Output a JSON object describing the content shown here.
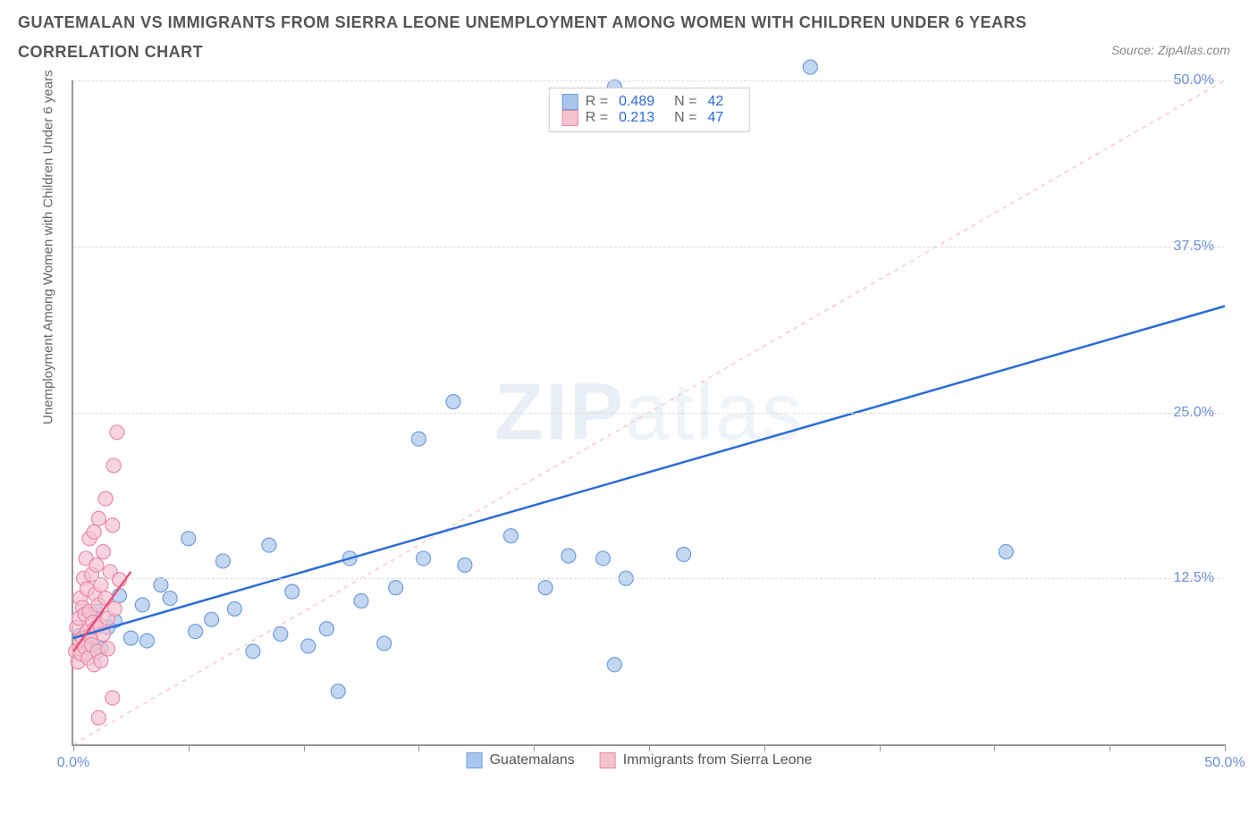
{
  "title_line1": "GUATEMALAN VS IMMIGRANTS FROM SIERRA LEONE UNEMPLOYMENT AMONG WOMEN WITH CHILDREN UNDER 6 YEARS",
  "title_line2": "CORRELATION CHART",
  "source": "Source: ZipAtlas.com",
  "watermark_a": "ZIP",
  "watermark_b": "atlas",
  "ylabel": "Unemployment Among Women with Children Under 6 years",
  "chart": {
    "type": "scatter",
    "xlim": [
      0,
      50
    ],
    "ylim": [
      0,
      50
    ],
    "x_ticks": [
      0,
      5,
      10,
      15,
      20,
      25,
      30,
      35,
      40,
      45,
      50
    ],
    "x_tick_labels": {
      "0": "0.0%",
      "50": "50.0%"
    },
    "y_ticks": [
      12.5,
      25.0,
      37.5,
      50.0
    ],
    "y_tick_labels": [
      "12.5%",
      "25.0%",
      "37.5%",
      "50.0%"
    ],
    "grid_color": "#e5e5e5",
    "axis_color": "#999999",
    "background_color": "#ffffff",
    "tick_label_color": "#6a8fd8",
    "series": [
      {
        "name": "Guatemalans",
        "marker_color": "#a9c6ec",
        "marker_border": "#6f9edb",
        "marker_opacity": 0.7,
        "marker_radius": 8,
        "line_color": "#2b6cd8",
        "line_width": 2.5,
        "line_dash": "none",
        "R": 0.489,
        "N": 42,
        "trend": {
          "x1": 0,
          "y1": 8.0,
          "x2": 50,
          "y2": 33.0
        },
        "diag": {
          "x1": 0,
          "y1": 0,
          "x2": 50,
          "y2": 50,
          "color": "#f7c9d4",
          "dash": "5,5"
        },
        "points": [
          [
            0.3,
            8.2
          ],
          [
            0.6,
            7.5
          ],
          [
            1.0,
            10.0
          ],
          [
            1.2,
            7.2
          ],
          [
            1.8,
            9.3
          ],
          [
            2.0,
            11.2
          ],
          [
            2.5,
            8.0
          ],
          [
            3.0,
            10.5
          ],
          [
            3.2,
            7.8
          ],
          [
            3.8,
            12.0
          ],
          [
            4.2,
            11.0
          ],
          [
            5.0,
            15.5
          ],
          [
            5.3,
            8.5
          ],
          [
            6.0,
            9.4
          ],
          [
            6.5,
            13.8
          ],
          [
            7.0,
            10.2
          ],
          [
            7.8,
            7.0
          ],
          [
            8.5,
            15.0
          ],
          [
            9.0,
            8.3
          ],
          [
            9.5,
            11.5
          ],
          [
            10.2,
            7.4
          ],
          [
            11.0,
            8.7
          ],
          [
            11.5,
            4.0
          ],
          [
            12.0,
            14.0
          ],
          [
            12.5,
            10.8
          ],
          [
            13.5,
            7.6
          ],
          [
            14.0,
            11.8
          ],
          [
            15.0,
            23.0
          ],
          [
            15.2,
            14.0
          ],
          [
            16.5,
            25.8
          ],
          [
            17.0,
            13.5
          ],
          [
            19.0,
            15.7
          ],
          [
            20.5,
            11.8
          ],
          [
            21.5,
            14.2
          ],
          [
            23.0,
            14.0
          ],
          [
            23.5,
            6.0
          ],
          [
            24.0,
            12.5
          ],
          [
            26.5,
            14.3
          ],
          [
            32.0,
            51.0
          ],
          [
            40.5,
            14.5
          ],
          [
            23.5,
            49.5
          ],
          [
            1.5,
            8.8
          ]
        ]
      },
      {
        "name": "Immigrants from Sierra Leone",
        "marker_color": "#f5c2d0",
        "marker_border": "#e88aa8",
        "marker_opacity": 0.7,
        "marker_radius": 8,
        "line_color": "#e8517a",
        "line_width": 2.5,
        "line_dash": "none",
        "R": 0.213,
        "N": 47,
        "trend": {
          "x1": 0,
          "y1": 7.0,
          "x2": 2.5,
          "y2": 13.0
        },
        "points": [
          [
            0.1,
            7.0
          ],
          [
            0.15,
            8.8
          ],
          [
            0.2,
            6.2
          ],
          [
            0.25,
            9.5
          ],
          [
            0.3,
            7.8
          ],
          [
            0.3,
            11.0
          ],
          [
            0.35,
            6.8
          ],
          [
            0.4,
            10.3
          ],
          [
            0.4,
            8.0
          ],
          [
            0.45,
            12.5
          ],
          [
            0.5,
            7.3
          ],
          [
            0.5,
            9.8
          ],
          [
            0.55,
            14.0
          ],
          [
            0.6,
            8.5
          ],
          [
            0.6,
            11.7
          ],
          [
            0.65,
            6.5
          ],
          [
            0.7,
            10.0
          ],
          [
            0.7,
            15.5
          ],
          [
            0.75,
            8.2
          ],
          [
            0.8,
            12.8
          ],
          [
            0.8,
            7.5
          ],
          [
            0.85,
            9.2
          ],
          [
            0.9,
            16.0
          ],
          [
            0.9,
            6.0
          ],
          [
            0.95,
            11.3
          ],
          [
            1.0,
            8.8
          ],
          [
            1.0,
            13.5
          ],
          [
            1.05,
            7.0
          ],
          [
            1.1,
            10.5
          ],
          [
            1.1,
            17.0
          ],
          [
            1.15,
            9.0
          ],
          [
            1.2,
            12.0
          ],
          [
            1.2,
            6.3
          ],
          [
            1.3,
            14.5
          ],
          [
            1.3,
            8.3
          ],
          [
            1.4,
            11.0
          ],
          [
            1.4,
            18.5
          ],
          [
            1.5,
            9.5
          ],
          [
            1.5,
            7.2
          ],
          [
            1.6,
            13.0
          ],
          [
            1.7,
            16.5
          ],
          [
            1.75,
            21.0
          ],
          [
            1.8,
            10.2
          ],
          [
            1.9,
            23.5
          ],
          [
            2.0,
            12.4
          ],
          [
            1.1,
            2.0
          ],
          [
            1.7,
            3.5
          ]
        ]
      }
    ]
  },
  "legend_bottom": [
    {
      "label": "Guatemalans",
      "fill": "#a9c6ec",
      "border": "#6f9edb"
    },
    {
      "label": "Immigrants from Sierra Leone",
      "fill": "#f5c2d0",
      "border": "#e88aa8"
    }
  ]
}
